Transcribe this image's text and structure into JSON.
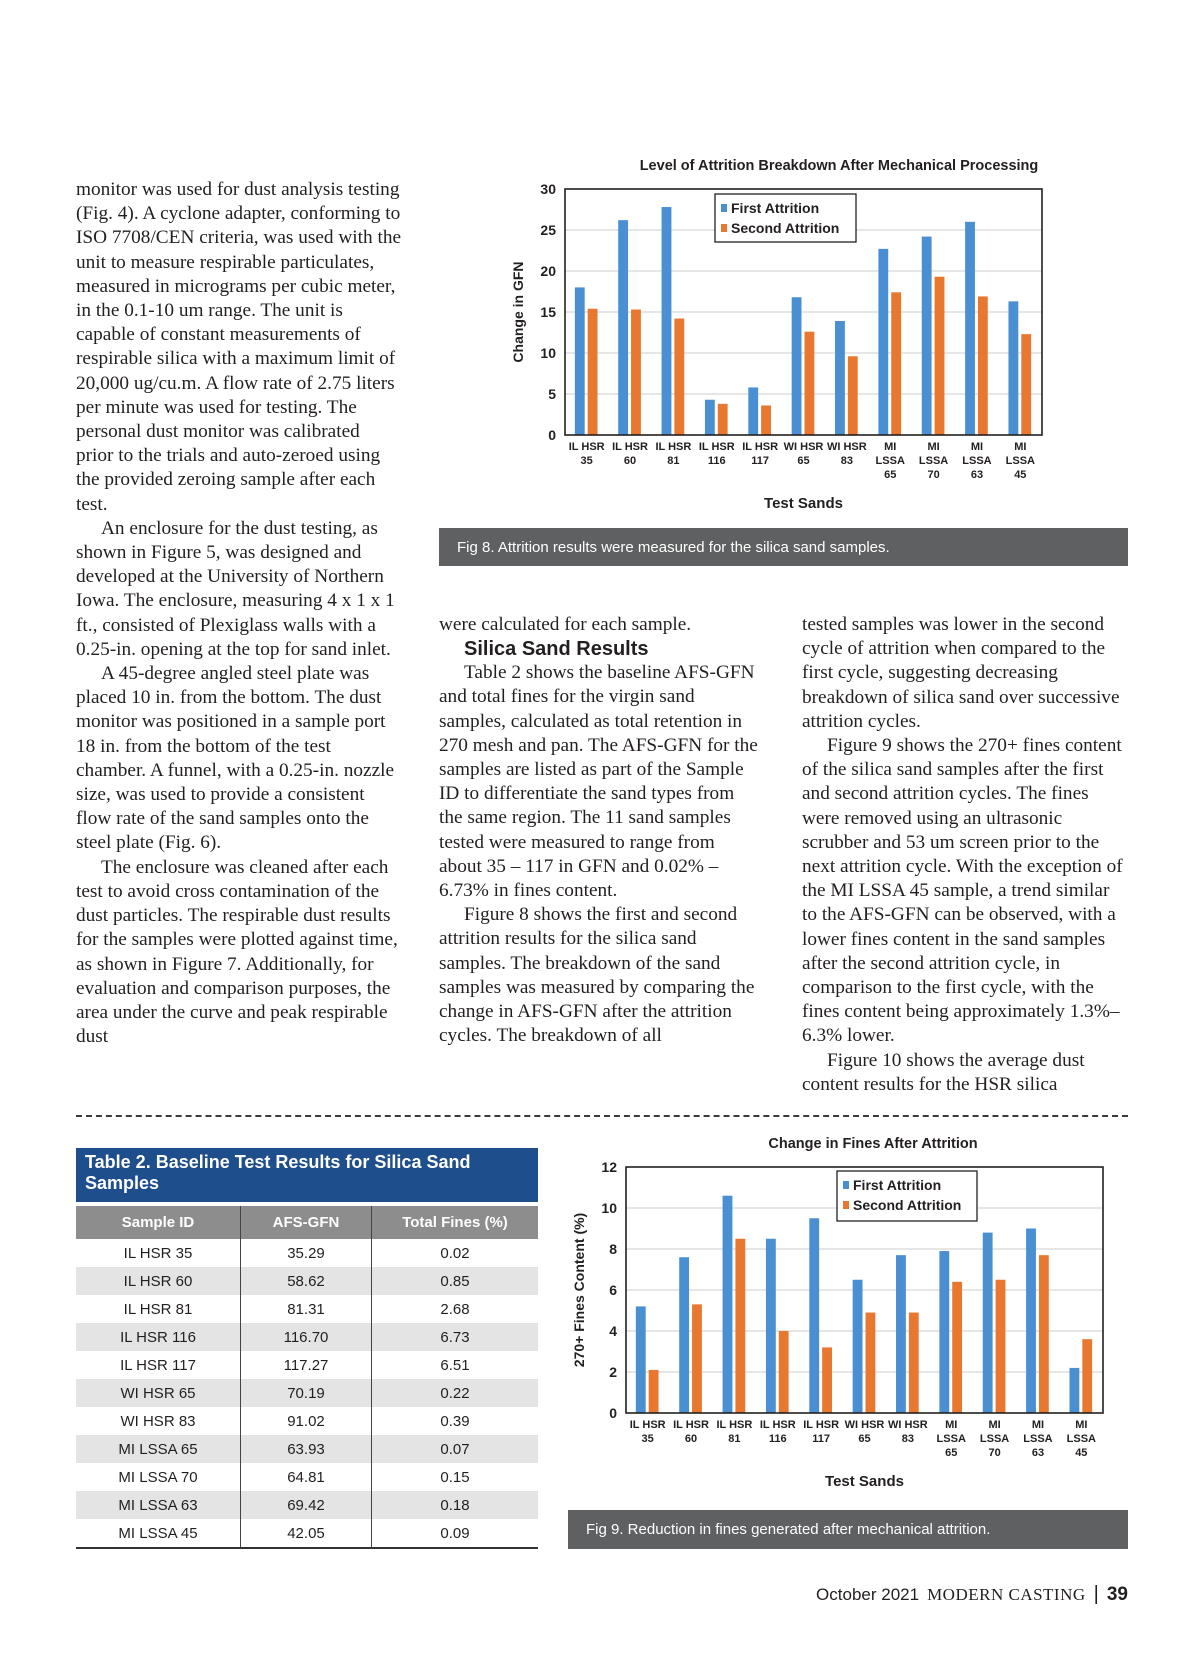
{
  "article": {
    "col1": [
      "monitor was used for dust analysis testing (Fig. 4). A cyclone adapter, conforming to ISO 7708/CEN criteria, was used with the unit to measure respirable particulates, measured in micrograms per cubic meter, in the 0.1-10 um range. The unit is capable of constant measurements of respirable silica with a maximum limit of 20,000 ug/cu.m. A flow rate of 2.75 liters per minute was used for testing. The personal dust monitor was calibrated prior to the trials and auto-zeroed using the provided zeroing sample after each test.",
      "An enclosure for the dust testing, as shown in Figure 5, was designed and developed at the University of Northern Iowa. The enclosure, measuring 4 x 1 x 1 ft., consisted of Plexiglass walls with a 0.25-in. opening at the top for sand inlet.",
      "A 45-degree angled steel plate was placed 10 in. from the bottom. The dust monitor was positioned in a sample port 18 in. from the bottom of the test chamber. A funnel, with a 0.25-in. nozzle size, was used to provide a consistent flow rate of the sand samples onto the steel plate (Fig. 6).",
      "The enclosure was cleaned after each test to avoid cross contamination of the dust particles. The respirable dust results for the samples were plotted against time, as shown in Figure 7. Additionally, for evaluation and comparison purposes, the area under the curve and peak respirable dust"
    ],
    "col2_lead": "were calculated for each sample.",
    "section_heading": "Silica Sand Results",
    "col2": [
      "Table 2 shows the baseline AFS-GFN and total fines for the virgin sand samples, calculated as total retention in 270 mesh and pan. The AFS-GFN for the samples are listed as part of the Sample ID to differentiate the sand types from the same region. The 11 sand samples tested were measured to range from about 35 – 117 in GFN and 0.02% – 6.73% in fines content.",
      "Figure 8 shows the first and second attrition results for the silica sand samples. The breakdown of the sand samples was measured by comparing the change in AFS-GFN after the attrition cycles. The breakdown of all"
    ],
    "col3_lead": "tested samples was lower in the second cycle of attrition when compared to the first cycle, suggesting decreasing breakdown of silica sand over successive attrition cycles.",
    "col3": [
      "Figure 9 shows the 270+ fines content of the silica sand samples after the first and second attrition cycles. The fines were removed using an ultrasonic scrubber and 53 um screen prior to the next attrition cycle. With the exception of the MI LSSA 45 sample, a trend similar to the AFS-GFN can be observed, with a lower fines content in the sand samples after the second attrition cycle, in comparison to the first cycle, with the fines content being approximately 1.3%–6.3% lower.",
      "Figure 10 shows the average dust content results for the HSR silica"
    ]
  },
  "captions": {
    "fig8": "Fig 8. Attrition results were measured for the silica sand samples.",
    "fig9": "Fig 9. Reduction in fines generated after mechanical attrition."
  },
  "table2": {
    "title": "Table 2. Baseline Test Results for Silica Sand Samples",
    "headers": [
      "Sample ID",
      "AFS-GFN",
      "Total Fines (%)"
    ],
    "rows": [
      [
        "IL HSR 35",
        "35.29",
        "0.02"
      ],
      [
        "IL HSR 60",
        "58.62",
        "0.85"
      ],
      [
        "IL HSR 81",
        "81.31",
        "2.68"
      ],
      [
        "IL HSR 116",
        "116.70",
        "6.73"
      ],
      [
        "IL HSR 117",
        "117.27",
        "6.51"
      ],
      [
        "WI HSR 65",
        "70.19",
        "0.22"
      ],
      [
        "WI HSR 83",
        "91.02",
        "0.39"
      ],
      [
        "MI LSSA 65",
        "63.93",
        "0.07"
      ],
      [
        "MI LSSA 70",
        "64.81",
        "0.15"
      ],
      [
        "MI LSSA 63",
        "69.42",
        "0.18"
      ],
      [
        "MI LSSA 45",
        "42.05",
        "0.09"
      ]
    ]
  },
  "footer": {
    "date": "October 2021",
    "magazine": "MODERN CASTING",
    "separator": "|",
    "page": "39"
  },
  "colors": {
    "first": "#4a8fd2",
    "second": "#e8782f",
    "caption_bg": "#5f6062",
    "table_title_bg": "#1f4e8c"
  },
  "chart_data": [
    {
      "type": "bar",
      "title": "Level of Attrition Breakdown After Mechanical Processing",
      "xlabel": "Test Sands",
      "ylabel": "Change in GFN",
      "ylim": [
        0,
        30
      ],
      "yticks": [
        0,
        5,
        10,
        15,
        20,
        25,
        30
      ],
      "grid": true,
      "legend": "top-center",
      "categories": [
        "IL HSR 35",
        "IL HSR 60",
        "IL HSR 81",
        "IL HSR 116",
        "IL HSR 117",
        "WI HSR 65",
        "WI HSR 83",
        "MI LSSA 65",
        "MI LSSA 70",
        "MI LSSA 63",
        "MI LSSA 45"
      ],
      "series": [
        {
          "name": "First Attrition",
          "values": [
            18.0,
            26.2,
            27.8,
            4.3,
            5.8,
            16.8,
            13.9,
            22.7,
            24.2,
            26.0,
            16.3
          ]
        },
        {
          "name": "Second Attrition",
          "values": [
            15.4,
            15.3,
            14.2,
            3.8,
            3.6,
            12.6,
            9.6,
            17.4,
            19.3,
            16.9,
            12.3
          ]
        }
      ]
    },
    {
      "type": "bar",
      "title": "Change in Fines After Attrition",
      "xlabel": "Test Sands",
      "ylabel": "270+ Fines Content (%)",
      "ylim": [
        0,
        12
      ],
      "yticks": [
        0,
        2,
        4,
        6,
        8,
        10,
        12
      ],
      "grid": true,
      "legend": "top-right",
      "categories": [
        "IL HSR 35",
        "IL HSR 60",
        "IL HSR 81",
        "IL HSR 116",
        "IL HSR 117",
        "WI HSR 65",
        "WI HSR 83",
        "MI LSSA 65",
        "MI LSSA 70",
        "MI LSSA 63",
        "MI LSSA 45"
      ],
      "series": [
        {
          "name": "First Attrition",
          "values": [
            5.2,
            7.6,
            10.6,
            8.5,
            9.5,
            6.5,
            7.7,
            7.9,
            8.8,
            9.0,
            2.2
          ]
        },
        {
          "name": "Second Attrition",
          "values": [
            2.1,
            5.3,
            8.5,
            4.0,
            3.2,
            4.9,
            4.9,
            6.4,
            6.5,
            7.7,
            3.6
          ]
        }
      ]
    }
  ]
}
